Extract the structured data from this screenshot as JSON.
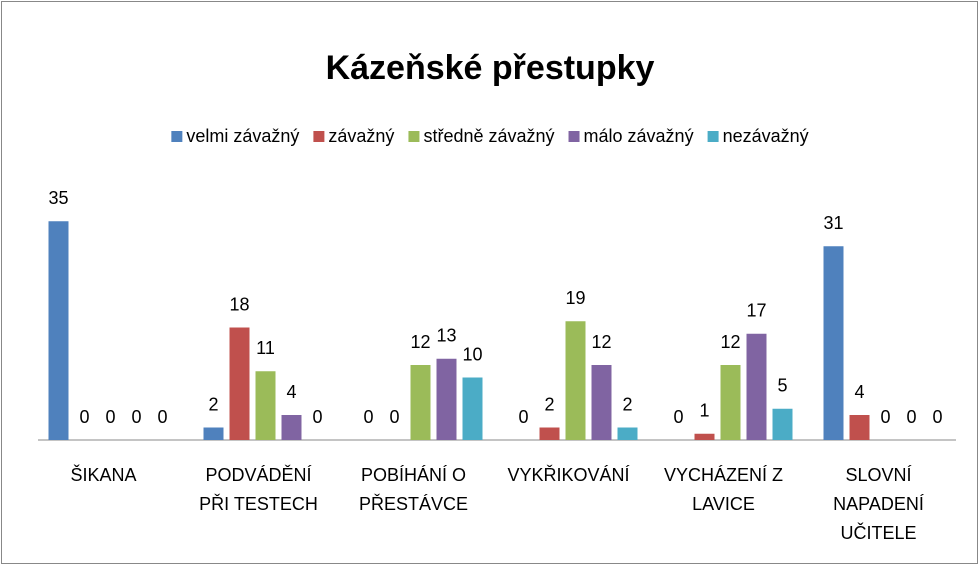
{
  "chart_data": {
    "type": "bar",
    "title": "Kázeňské přestupky",
    "categories": [
      [
        "ŠIKANA"
      ],
      [
        "PODVÁDĚNÍ",
        "PŘI TESTECH"
      ],
      [
        "POBÍHÁNÍ O",
        "PŘESTÁVCE"
      ],
      [
        "VYKŘIKOVÁNÍ"
      ],
      [
        "VYCHÁZENÍ Z",
        "LAVICE"
      ],
      [
        "SLOVNÍ",
        "NAPADENÍ",
        "UČITELE"
      ]
    ],
    "series": [
      {
        "name": "velmi závažný",
        "color": "#4f81bd",
        "values": [
          35,
          2,
          0,
          0,
          0,
          31
        ]
      },
      {
        "name": "závažný",
        "color": "#c0504d",
        "values": [
          0,
          18,
          0,
          2,
          1,
          4
        ]
      },
      {
        "name": "středně závažný",
        "color": "#9bbb59",
        "values": [
          0,
          11,
          12,
          19,
          12,
          0
        ]
      },
      {
        "name": "málo závažný",
        "color": "#8064a2",
        "values": [
          0,
          4,
          13,
          12,
          17,
          0
        ]
      },
      {
        "name": "nezávažný",
        "color": "#4bacc6",
        "values": [
          0,
          0,
          10,
          2,
          5,
          0
        ]
      }
    ],
    "ylim": [
      0,
      40
    ],
    "legend": "top"
  }
}
